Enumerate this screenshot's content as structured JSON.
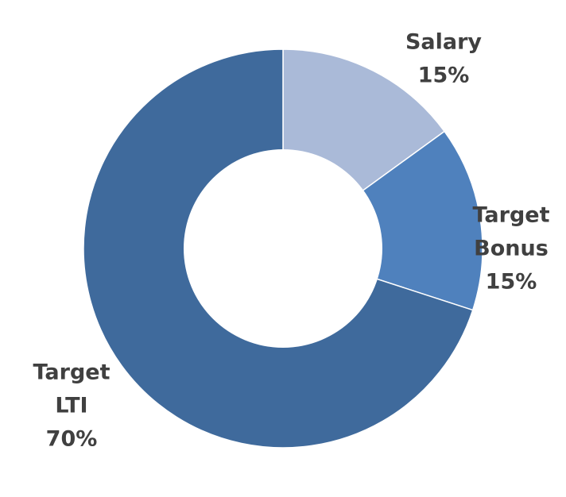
{
  "chart_data": {
    "type": "pie",
    "donut": true,
    "title": "",
    "legend": "none",
    "slices": [
      {
        "label_lines": [
          "Salary"
        ],
        "value": 15,
        "value_label": "15%",
        "color": "#aabad8"
      },
      {
        "label_lines": [
          "Target",
          "Bonus"
        ],
        "value": 15,
        "value_label": "15%",
        "color": "#4f81bd"
      },
      {
        "label_lines": [
          "Target",
          "LTI"
        ],
        "value": 70,
        "value_label": "70%",
        "color": "#3f6a9c"
      }
    ]
  }
}
